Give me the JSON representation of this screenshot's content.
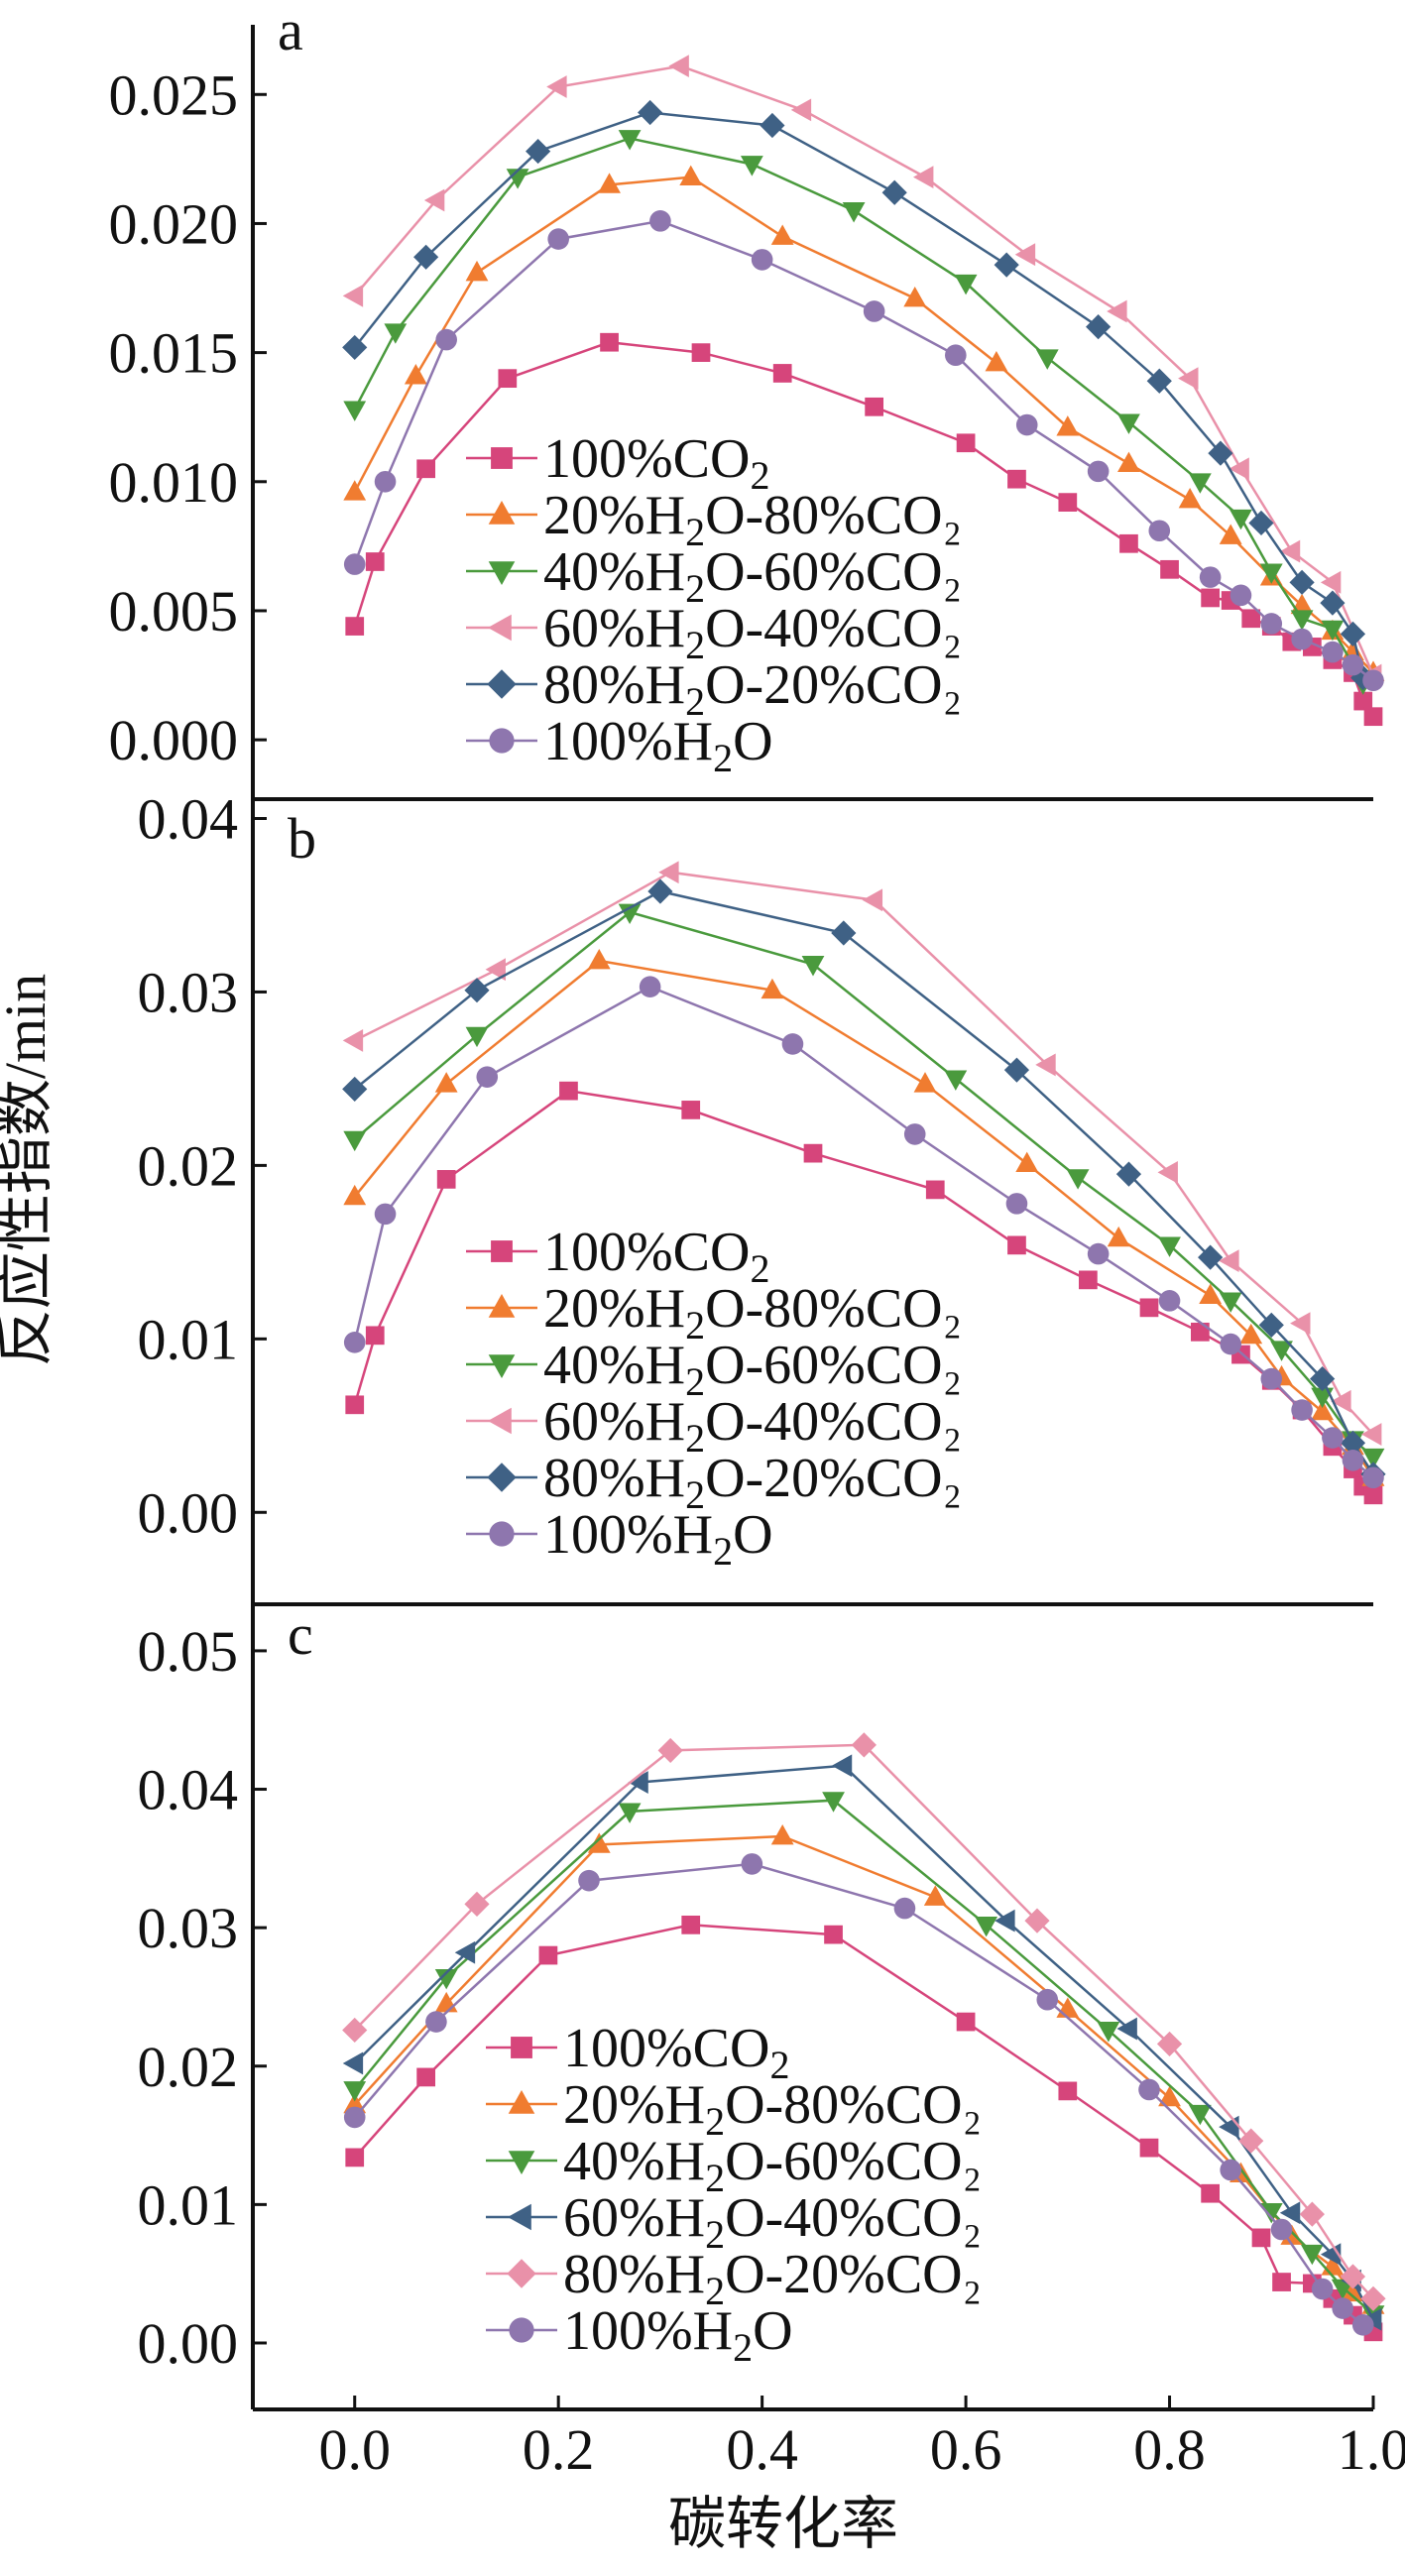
{
  "figure": {
    "xlabel": "碳转化率",
    "ylabel": "反应性指数/min",
    "x_ticks": [
      "0.0",
      "0.2",
      "0.4",
      "0.6",
      "0.8",
      "1.0"
    ]
  },
  "colors": {
    "100%CO2": "#d6457b",
    "20%H2O-80%CO2": "#f07c30",
    "40%H2O-60%CO2": "#4a9a3d",
    "60%H2O-40%CO2": "#e991a9",
    "80%H2O-20%CO2": "#3f6185",
    "100%H2O": "#8e76ae"
  },
  "chart_data": [
    {
      "type": "line",
      "panel": "a",
      "xlim": [
        -0.1,
        1.0
      ],
      "ylim": [
        -0.0023,
        0.0277
      ],
      "y_ticks": [
        "0.000",
        "0.005",
        "0.010",
        "0.015",
        "0.020",
        "0.025"
      ],
      "series": [
        {
          "name": "100%CO2",
          "label_main": "100%CO",
          "label_sub": "2",
          "label_tail": "",
          "marker": "square",
          "color": "#d6457b",
          "x": [
            0.0,
            0.02,
            0.07,
            0.15,
            0.25,
            0.34,
            0.42,
            0.51,
            0.6,
            0.65,
            0.7,
            0.76,
            0.8,
            0.84,
            0.86,
            0.88,
            0.9,
            0.92,
            0.94,
            0.96,
            0.98,
            0.99,
            1.0
          ],
          "y": [
            0.0044,
            0.0069,
            0.0105,
            0.014,
            0.0154,
            0.015,
            0.0142,
            0.0129,
            0.0115,
            0.0101,
            0.0092,
            0.0076,
            0.0066,
            0.0055,
            0.0054,
            0.0047,
            0.0044,
            0.0038,
            0.0036,
            0.0031,
            0.0026,
            0.0015,
            0.0009
          ]
        },
        {
          "name": "20%H2O-80%CO2",
          "label_main": "20%H",
          "label_sub": "2",
          "label_tail": "O-80%CO₂",
          "marker": "triangle-up",
          "color": "#f07c30",
          "x": [
            0.0,
            0.06,
            0.12,
            0.25,
            0.33,
            0.42,
            0.55,
            0.63,
            0.7,
            0.76,
            0.82,
            0.86,
            0.9,
            0.93,
            0.96,
            0.98,
            1.0
          ],
          "y": [
            0.0096,
            0.0141,
            0.0181,
            0.0215,
            0.0218,
            0.0195,
            0.0171,
            0.0146,
            0.0121,
            0.0107,
            0.0093,
            0.0079,
            0.0063,
            0.0052,
            0.0042,
            0.0034,
            0.0026
          ]
        },
        {
          "name": "40%H2O-60%CO2",
          "label_main": "40%H",
          "label_sub": "2",
          "label_tail": "O-60%CO₂",
          "marker": "triangle-down",
          "color": "#4a9a3d",
          "x": [
            0.0,
            0.04,
            0.16,
            0.27,
            0.39,
            0.49,
            0.6,
            0.68,
            0.76,
            0.83,
            0.87,
            0.9,
            0.93,
            0.96,
            0.99
          ],
          "y": [
            0.0128,
            0.0158,
            0.0218,
            0.0233,
            0.0223,
            0.0205,
            0.0177,
            0.0148,
            0.0123,
            0.01,
            0.0086,
            0.0065,
            0.0047,
            0.0043,
            0.0022
          ]
        },
        {
          "name": "60%H2O-40%CO2",
          "label_main": "60%H",
          "label_sub": "2",
          "label_tail": "O-40%CO₂",
          "marker": "triangle-left",
          "color": "#e991a9",
          "x": [
            0.0,
            0.08,
            0.2,
            0.32,
            0.44,
            0.56,
            0.66,
            0.75,
            0.82,
            0.87,
            0.92,
            0.96,
            1.0
          ],
          "y": [
            0.0172,
            0.0209,
            0.0253,
            0.0261,
            0.0244,
            0.0218,
            0.0188,
            0.0166,
            0.014,
            0.0105,
            0.0073,
            0.0061,
            0.0025
          ]
        },
        {
          "name": "80%H2O-20%CO2",
          "label_main": "80%H",
          "label_sub": "2",
          "label_tail": "O-20%CO₂",
          "marker": "diamond",
          "color": "#3f6185",
          "x": [
            0.0,
            0.07,
            0.18,
            0.29,
            0.41,
            0.53,
            0.64,
            0.73,
            0.79,
            0.85,
            0.89,
            0.93,
            0.96,
            0.98,
            0.99
          ],
          "y": [
            0.0152,
            0.0187,
            0.0228,
            0.0243,
            0.0238,
            0.0212,
            0.0184,
            0.016,
            0.0139,
            0.0111,
            0.0084,
            0.0061,
            0.0053,
            0.0041,
            0.0024
          ]
        },
        {
          "name": "100%H2O",
          "label_main": "100%H",
          "label_sub": "2",
          "label_tail": "O",
          "marker": "circle",
          "color": "#8e76ae",
          "x": [
            0.0,
            0.03,
            0.09,
            0.2,
            0.3,
            0.4,
            0.51,
            0.59,
            0.66,
            0.73,
            0.79,
            0.84,
            0.87,
            0.9,
            0.93,
            0.96,
            0.98,
            1.0
          ],
          "y": [
            0.0068,
            0.01,
            0.0155,
            0.0194,
            0.0201,
            0.0186,
            0.0166,
            0.0149,
            0.0122,
            0.0104,
            0.0081,
            0.0063,
            0.0056,
            0.0045,
            0.0039,
            0.0034,
            0.0029,
            0.0023
          ]
        }
      ]
    },
    {
      "type": "line",
      "panel": "b",
      "xlim": [
        -0.1,
        1.0
      ],
      "ylim": [
        -0.0053,
        0.0402
      ],
      "y_ticks": [
        "0.00",
        "0.01",
        "0.02",
        "0.03",
        "0.04"
      ],
      "series": [
        {
          "name": "100%CO2",
          "label_main": "100%CO",
          "label_sub": "2",
          "label_tail": "",
          "marker": "square",
          "color": "#d6457b",
          "x": [
            0.0,
            0.02,
            0.09,
            0.21,
            0.33,
            0.45,
            0.57,
            0.65,
            0.72,
            0.78,
            0.83,
            0.87,
            0.9,
            0.93,
            0.96,
            0.98,
            0.99,
            1.0
          ],
          "y": [
            0.0062,
            0.0102,
            0.0192,
            0.0243,
            0.0232,
            0.0207,
            0.0186,
            0.0154,
            0.0134,
            0.0118,
            0.0104,
            0.0091,
            0.0076,
            0.0059,
            0.0038,
            0.0025,
            0.0015,
            0.001
          ]
        },
        {
          "name": "20%H2O-80%CO2",
          "label_main": "20%H",
          "label_sub": "2",
          "label_tail": "O-80%CO₂",
          "marker": "triangle-up",
          "color": "#f07c30",
          "x": [
            0.0,
            0.09,
            0.24,
            0.41,
            0.56,
            0.66,
            0.75,
            0.84,
            0.88,
            0.91,
            0.95,
            0.98,
            1.0
          ],
          "y": [
            0.0182,
            0.0247,
            0.0318,
            0.0301,
            0.0247,
            0.0201,
            0.0158,
            0.0125,
            0.0102,
            0.0078,
            0.0058,
            0.0038,
            0.002
          ]
        },
        {
          "name": "40%H2O-60%CO2",
          "label_main": "40%H",
          "label_sub": "2",
          "label_tail": "O-60%CO₂",
          "marker": "triangle-down",
          "color": "#4a9a3d",
          "x": [
            0.0,
            0.12,
            0.27,
            0.45,
            0.59,
            0.71,
            0.8,
            0.86,
            0.91,
            0.95,
            0.98,
            1.0
          ],
          "y": [
            0.0215,
            0.0275,
            0.0346,
            0.0316,
            0.025,
            0.0193,
            0.0154,
            0.0122,
            0.0094,
            0.0067,
            0.0042,
            0.0032
          ]
        },
        {
          "name": "60%H2O-40%CO2",
          "label_main": "60%H",
          "label_sub": "2",
          "label_tail": "O-40%CO₂",
          "marker": "triangle-left",
          "color": "#e991a9",
          "x": [
            0.0,
            0.14,
            0.31,
            0.51,
            0.68,
            0.8,
            0.86,
            0.93,
            0.97,
            1.0
          ],
          "y": [
            0.0272,
            0.0313,
            0.0369,
            0.0353,
            0.0258,
            0.0196,
            0.0145,
            0.0109,
            0.0064,
            0.0045
          ]
        },
        {
          "name": "80%H2O-20%CO2",
          "label_main": "80%H",
          "label_sub": "2",
          "label_tail": "O-20%CO₂",
          "marker": "diamond",
          "color": "#3f6185",
          "x": [
            0.0,
            0.12,
            0.3,
            0.48,
            0.65,
            0.76,
            0.84,
            0.9,
            0.95,
            0.98,
            1.0
          ],
          "y": [
            0.0244,
            0.0301,
            0.0358,
            0.0334,
            0.0255,
            0.0195,
            0.0147,
            0.0108,
            0.0077,
            0.004,
            0.0022
          ]
        },
        {
          "name": "100%H2O",
          "label_main": "100%H",
          "label_sub": "2",
          "label_tail": "O",
          "marker": "circle",
          "color": "#8e76ae",
          "x": [
            0.0,
            0.03,
            0.13,
            0.29,
            0.43,
            0.55,
            0.65,
            0.73,
            0.8,
            0.86,
            0.9,
            0.93,
            0.96,
            0.98,
            1.0
          ],
          "y": [
            0.0098,
            0.0172,
            0.0251,
            0.0303,
            0.027,
            0.0218,
            0.0178,
            0.0149,
            0.0122,
            0.0097,
            0.0077,
            0.0059,
            0.0043,
            0.003,
            0.002
          ]
        }
      ]
    },
    {
      "type": "line",
      "panel": "c",
      "xlim": [
        -0.1,
        1.0
      ],
      "ylim": [
        -0.0048,
        0.0525
      ],
      "y_ticks": [
        "0.00",
        "0.01",
        "0.02",
        "0.03",
        "0.04",
        "0.05"
      ],
      "series": [
        {
          "name": "100%CO2",
          "label_main": "100%CO",
          "label_sub": "2",
          "label_tail": "",
          "marker": "square",
          "color": "#d6457b",
          "x": [
            0.0,
            0.07,
            0.19,
            0.33,
            0.47,
            0.6,
            0.7,
            0.78,
            0.84,
            0.89,
            0.91,
            0.94,
            0.96,
            0.98,
            1.0
          ],
          "y": [
            0.0134,
            0.0192,
            0.028,
            0.0302,
            0.0295,
            0.0232,
            0.0182,
            0.0141,
            0.0108,
            0.0076,
            0.0044,
            0.0043,
            0.0032,
            0.002,
            0.0008
          ]
        },
        {
          "name": "20%H2O-80%CO2",
          "label_main": "20%H",
          "label_sub": "2",
          "label_tail": "O-80%CO₂",
          "marker": "triangle-up",
          "color": "#f07c30",
          "x": [
            0.0,
            0.09,
            0.24,
            0.42,
            0.57,
            0.7,
            0.8,
            0.87,
            0.92,
            0.96,
            0.98,
            1.0
          ],
          "y": [
            0.0172,
            0.0245,
            0.036,
            0.0366,
            0.0322,
            0.0241,
            0.0177,
            0.0122,
            0.0077,
            0.0055,
            0.0036,
            0.0027
          ]
        },
        {
          "name": "40%H2O-60%CO2",
          "label_main": "40%H",
          "label_sub": "2",
          "label_tail": "O-60%CO₂",
          "marker": "triangle-down",
          "color": "#4a9a3d",
          "x": [
            0.0,
            0.09,
            0.27,
            0.47,
            0.62,
            0.74,
            0.83,
            0.9,
            0.94,
            0.97,
            1.0
          ],
          "y": [
            0.0183,
            0.0264,
            0.0384,
            0.0392,
            0.0302,
            0.0226,
            0.0166,
            0.0095,
            0.0065,
            0.004,
            0.0021
          ]
        },
        {
          "name": "60%H2O-40%CO2",
          "label_main": "60%H",
          "label_sub": "2",
          "label_tail": "O-40%CO₂",
          "marker": "triangle-left",
          "color": "#3f6185",
          "x": [
            0.0,
            0.11,
            0.28,
            0.48,
            0.64,
            0.76,
            0.86,
            0.92,
            0.96,
            0.98,
            1.0
          ],
          "y": [
            0.0202,
            0.0282,
            0.0405,
            0.0417,
            0.0305,
            0.0227,
            0.0156,
            0.0094,
            0.0064,
            0.0045,
            0.0017
          ]
        },
        {
          "name": "80%H2O-20%CO2",
          "label_main": "80%H",
          "label_sub": "2",
          "label_tail": "O-20%CO₂",
          "marker": "diamond",
          "color": "#e991a9",
          "x": [
            0.0,
            0.12,
            0.31,
            0.5,
            0.67,
            0.8,
            0.88,
            0.94,
            0.98,
            1.0
          ],
          "y": [
            0.0226,
            0.0317,
            0.0428,
            0.0432,
            0.0305,
            0.0216,
            0.0146,
            0.0093,
            0.0048,
            0.0032
          ]
        },
        {
          "name": "100%H2O",
          "label_main": "100%H",
          "label_sub": "2",
          "label_tail": "O",
          "marker": "circle",
          "color": "#8e76ae",
          "x": [
            0.0,
            0.08,
            0.23,
            0.39,
            0.54,
            0.68,
            0.78,
            0.86,
            0.91,
            0.95,
            0.97,
            0.99
          ],
          "y": [
            0.0163,
            0.0232,
            0.0334,
            0.0346,
            0.0314,
            0.0248,
            0.0183,
            0.0125,
            0.0082,
            0.0039,
            0.0025,
            0.0013
          ]
        }
      ]
    }
  ]
}
